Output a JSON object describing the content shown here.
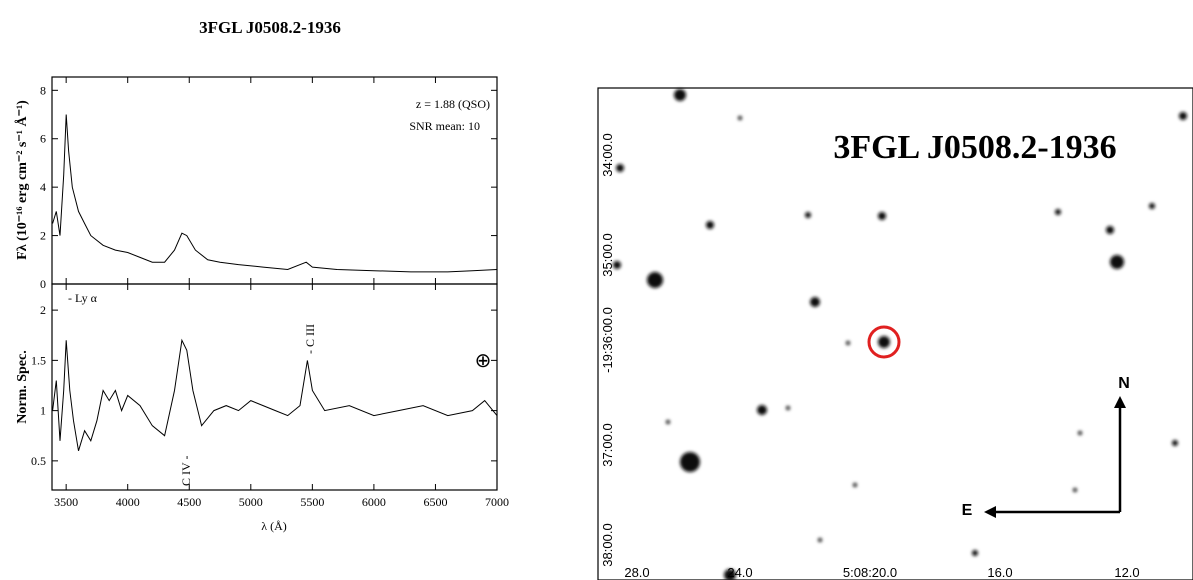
{
  "title": "3FGL J0508.2-1936",
  "chart_data": [
    {
      "type": "line",
      "ylabel": "Fλ (10⁻¹⁶ erg cm⁻² s⁻¹ Å⁻¹)",
      "color": "#000000",
      "annotations": [
        "z = 1.88 (QSO)",
        "SNR mean: 10"
      ],
      "x": [
        3390,
        3420,
        3450,
        3480,
        3500,
        3520,
        3550,
        3600,
        3650,
        3700,
        3800,
        3900,
        4000,
        4100,
        4200,
        4300,
        4380,
        4440,
        4480,
        4550,
        4650,
        4750,
        4900,
        5100,
        5300,
        5450,
        5500,
        5700,
        6000,
        6300,
        6600,
        6800,
        7000
      ],
      "values": [
        2.5,
        3,
        2,
        4.5,
        7,
        5.5,
        4,
        3,
        2.5,
        2,
        1.6,
        1.4,
        1.3,
        1.1,
        0.9,
        0.9,
        1.4,
        2.1,
        2,
        1.4,
        1,
        0.9,
        0.8,
        0.7,
        0.6,
        0.9,
        0.7,
        0.6,
        0.55,
        0.5,
        0.5,
        0.55,
        0.6
      ],
      "xlim": [
        3385,
        7000
      ],
      "ylim": [
        0,
        8.55
      ],
      "yticks": [
        0,
        2,
        4,
        6,
        8
      ]
    },
    {
      "type": "line",
      "ylabel": "Norm. Spec.",
      "xlabel": "λ (Å)",
      "color": "#000000",
      "annotations": [
        "- Ly α",
        "- C III",
        "C IV -",
        "⊕"
      ],
      "x": [
        3390,
        3420,
        3450,
        3480,
        3500,
        3530,
        3560,
        3600,
        3650,
        3700,
        3750,
        3800,
        3850,
        3900,
        3950,
        4000,
        4100,
        4200,
        4300,
        4380,
        4440,
        4480,
        4530,
        4600,
        4700,
        4800,
        4900,
        5000,
        5100,
        5200,
        5300,
        5400,
        5460,
        5500,
        5600,
        5800,
        6000,
        6200,
        6400,
        6600,
        6800,
        6900,
        7000
      ],
      "values": [
        1,
        1.3,
        0.7,
        1.2,
        1.7,
        1.2,
        0.9,
        0.6,
        0.8,
        0.7,
        0.9,
        1.2,
        1.1,
        1.2,
        1.0,
        1.15,
        1.05,
        0.85,
        0.75,
        1.2,
        1.7,
        1.6,
        1.2,
        0.85,
        1.0,
        1.05,
        1.0,
        1.1,
        1.05,
        1.0,
        0.95,
        1.05,
        1.5,
        1.2,
        1.0,
        1.05,
        0.95,
        1.0,
        1.05,
        0.95,
        1.0,
        1.1,
        0.95
      ],
      "xlim": [
        3385,
        7000
      ],
      "ylim": [
        0.21,
        2.26
      ],
      "yticks": [
        0.5,
        1,
        1.5,
        2
      ],
      "xticks": [
        3500,
        4000,
        4500,
        5000,
        5500,
        6000,
        6500,
        7000
      ]
    }
  ],
  "finding_chart": {
    "title": "3FGL J0508.2-1936",
    "dec_labels": [
      "34:00.0",
      "35:00.0",
      "-19:36:00.0",
      "37:00.0",
      "38:00.0"
    ],
    "ra_labels": [
      "28.0",
      "24.0",
      "5:08:20.0",
      "16.0",
      "12.0"
    ],
    "north": "N",
    "east": "E"
  }
}
